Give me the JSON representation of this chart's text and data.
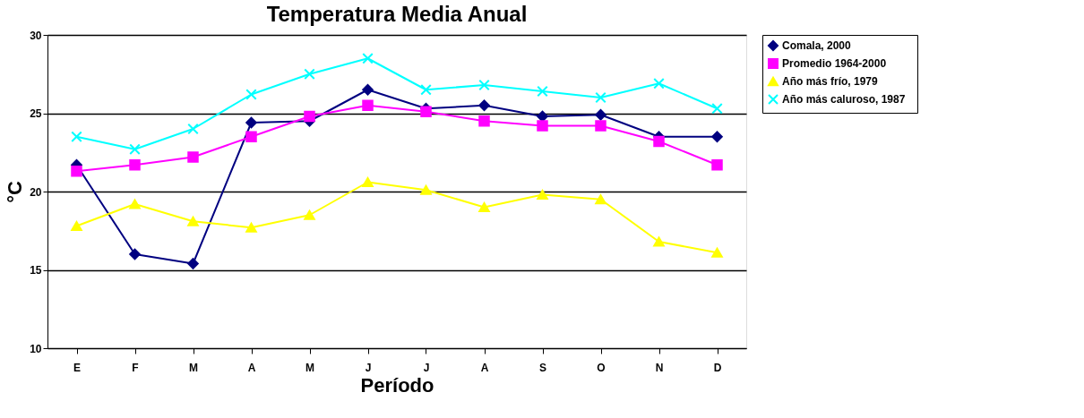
{
  "chart_data": {
    "type": "line",
    "title": "Temperatura Media Anual",
    "xlabel": "Período",
    "ylabel": "°C",
    "categories": [
      "E",
      "F",
      "M",
      "A",
      "M",
      "J",
      "J",
      "A",
      "S",
      "O",
      "N",
      "D"
    ],
    "series": [
      {
        "name": "Comala,  2000",
        "color": "#000080",
        "marker": "diamond",
        "values": [
          21.7,
          16.0,
          15.4,
          24.4,
          24.5,
          26.5,
          25.3,
          25.5,
          24.8,
          24.9,
          23.5,
          23.5
        ]
      },
      {
        "name": "Promedio 1964-2000",
        "color": "#ff00ff",
        "marker": "square",
        "values": [
          21.3,
          21.7,
          22.2,
          23.5,
          24.8,
          25.5,
          25.1,
          24.5,
          24.2,
          24.2,
          23.2,
          21.7
        ]
      },
      {
        "name": "Año más frío,   1979",
        "color": "#ffff00",
        "marker": "triangle",
        "values": [
          17.8,
          19.2,
          18.1,
          17.7,
          18.5,
          20.6,
          20.1,
          19.0,
          19.8,
          19.5,
          16.8,
          16.1
        ]
      },
      {
        "name": "Año más caluroso,   1987",
        "color": "#00ffff",
        "marker": "cross",
        "values": [
          23.5,
          22.7,
          24.0,
          26.2,
          27.5,
          28.5,
          26.5,
          26.8,
          26.4,
          26.0,
          26.9,
          25.3
        ]
      }
    ],
    "ylim": [
      10,
      30
    ],
    "yticks": [
      10,
      15,
      20,
      25,
      30
    ],
    "grid": "y",
    "legend": "top right",
    "line_style": "solid"
  }
}
